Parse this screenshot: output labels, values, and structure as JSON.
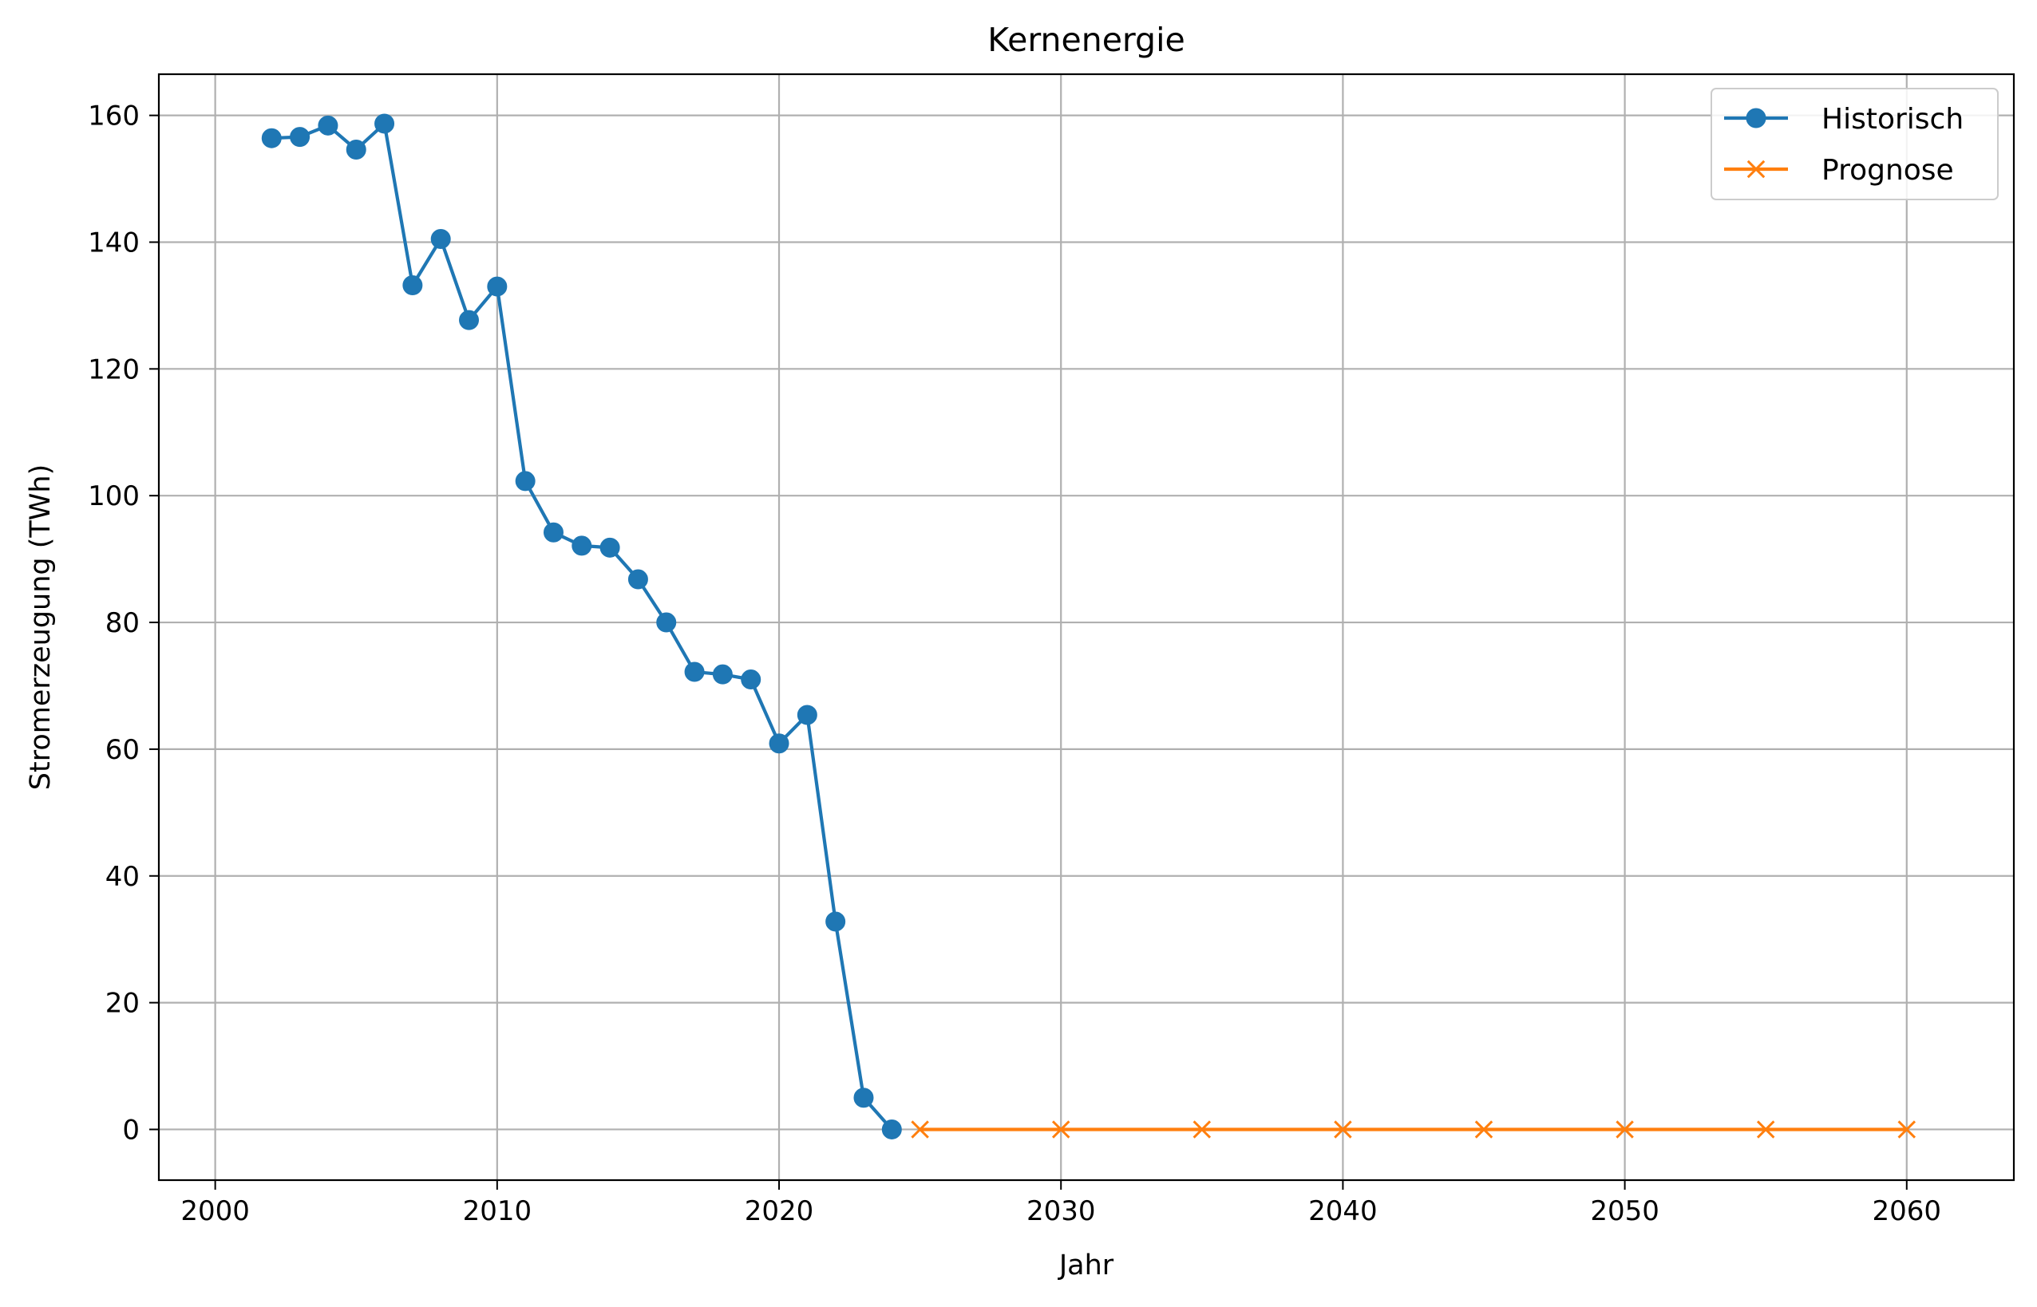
{
  "chart_data": {
    "type": "line",
    "title": "Kernenergie",
    "xlabel": "Jahr",
    "ylabel": "Stromerzeugung (TWh)",
    "xlim": [
      1998,
      2063.8
    ],
    "ylim": [
      -8,
      166.5
    ],
    "xticks": [
      2000,
      2010,
      2020,
      2030,
      2040,
      2050,
      2060
    ],
    "yticks": [
      0,
      20,
      40,
      60,
      80,
      100,
      120,
      140,
      160
    ],
    "grid": true,
    "legend_position": "top-right",
    "series": [
      {
        "name": "Historisch",
        "color": "#1f77b4",
        "marker": "circle",
        "x": [
          2002,
          2003,
          2004,
          2005,
          2006,
          2007,
          2008,
          2009,
          2010,
          2011,
          2012,
          2013,
          2014,
          2015,
          2016,
          2017,
          2018,
          2019,
          2020,
          2021,
          2022,
          2023,
          2024
        ],
        "y": [
          156.4,
          156.6,
          158.4,
          154.6,
          158.7,
          133.2,
          140.5,
          127.7,
          133.0,
          102.3,
          94.2,
          92.1,
          91.8,
          86.8,
          80.0,
          72.2,
          71.8,
          71.0,
          60.9,
          65.4,
          32.8,
          5.0,
          0.0
        ]
      },
      {
        "name": "Prognose",
        "color": "#ff7f0e",
        "marker": "x",
        "x": [
          2025,
          2030,
          2035,
          2040,
          2045,
          2050,
          2055,
          2060
        ],
        "y": [
          0,
          0,
          0,
          0,
          0,
          0,
          0,
          0
        ]
      }
    ]
  }
}
